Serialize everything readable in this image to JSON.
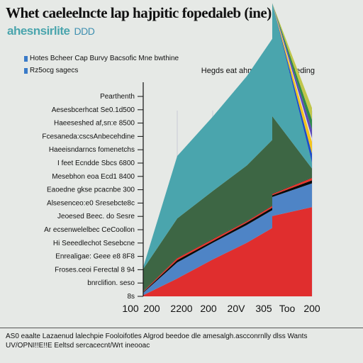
{
  "chart_data": {
    "type": "area",
    "title": "Whet caeleelncte lap hajpitic fopedaleb (ine)",
    "subtitle": "ahesnsirlite",
    "subtitle_suffix": "DDD",
    "legend_position": "top-left",
    "legend": [
      "Hotes Bcheer Cap Burvy Bacsofic Mne bwthine",
      "Rz5ocg sagecs"
    ],
    "annotation": "Hegds eat ahmng & dingd teding",
    "y_tick_labels": [
      "Pearthenth",
      "Aesesbcerhcat Se0.1d500",
      "Haeeseshed af,sn:e 8500",
      "Fcesaneda:cscsAnbecehdine",
      "Haeeisndarncs fomenetchs",
      "I feet Ecndde Sbcs 6800",
      "Mesebhon eoa Ecd1 8400",
      "Eaoedne gkse pcacnbe 300",
      "Alsesenceo:e0 Sresebcte8c",
      "Jeoesed Beec. do Sesre",
      "Ar ecsenwelelbec CeCoollon",
      "Hi Seeedlechot Sesebcne",
      "Enrealigae: Geee e8 8F8",
      "Froses.ceoi Ferectal 8 94",
      "bnrclifion. seso",
      "8s"
    ],
    "x_tick_labels": [
      "100",
      "200",
      "2200",
      "200",
      "20V",
      "305",
      "Too",
      "200"
    ],
    "grid": true,
    "series": [
      {
        "color": "#e02e2e",
        "values": [
          2,
          30,
          62,
          90,
          115,
          135,
          150,
          160
        ]
      },
      {
        "color": "#4e84c6",
        "values": [
          4,
          27,
          28,
          30,
          30,
          32,
          40,
          40
        ]
      },
      {
        "color": "#0a0a0a",
        "values": [
          1,
          4,
          3,
          4,
          4,
          3,
          5,
          5
        ]
      },
      {
        "color": "#e8342a",
        "values": [
          1,
          3,
          3,
          2,
          3,
          2,
          4,
          4
        ]
      },
      {
        "color": "#1f3f2a",
        "values": [
          1,
          1,
          1,
          1,
          1,
          1,
          1,
          1
        ]
      },
      {
        "color": "#3d6644",
        "values": [
          37,
          66,
          80,
          93,
          110,
          130,
          15,
          15
        ]
      },
      {
        "color": "#4aa5ad",
        "values": [
          3,
          105,
          125,
          150,
          170,
          190,
          10,
          10
        ]
      },
      {
        "color": "#1e4ec8",
        "values": [
          0,
          0,
          0,
          0,
          0,
          0,
          15,
          15
        ]
      },
      {
        "color": "#f3c41c",
        "values": [
          0,
          0,
          0,
          0,
          0,
          0,
          20,
          20
        ]
      },
      {
        "color": "#e8e3ee",
        "values": [
          0,
          0,
          0,
          0,
          0,
          0,
          6,
          6
        ]
      },
      {
        "color": "#5b4bb8",
        "values": [
          0,
          0,
          0,
          0,
          0,
          0,
          15,
          15
        ]
      },
      {
        "color": "#2f8a4a",
        "values": [
          0,
          0,
          0,
          0,
          0,
          0,
          16,
          16
        ]
      },
      {
        "color": "#c0c64a",
        "values": [
          0,
          0,
          0,
          0,
          0,
          0,
          20,
          20
        ]
      }
    ],
    "legend_colors": [
      "#3a7bc8",
      "#3a7bc8"
    ],
    "ylim": [
      0,
      360
    ]
  },
  "footer": [
    "AS0 eaalte Lazaenud lalechpie Fooloifotles Algrod beedoe dle amesalgh.ascconrnlly dlss Wants",
    "UV/OPNI!!E!!E Eeltsd sercacecnt/Wrt ineooac"
  ]
}
